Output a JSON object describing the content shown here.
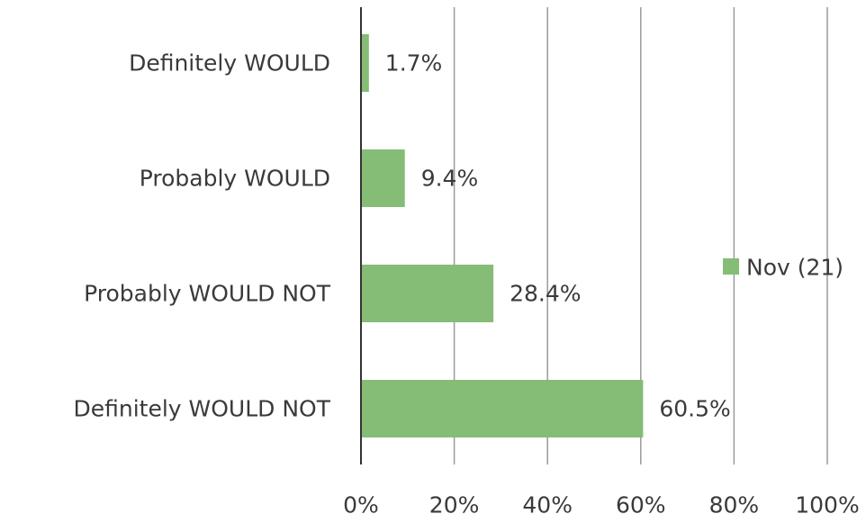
{
  "chart_data": {
    "type": "bar",
    "orientation": "horizontal",
    "categories": [
      "Definitely WOULD",
      "Probably WOULD",
      "Probably WOULD NOT",
      "Definitely WOULD NOT"
    ],
    "series": [
      {
        "name": "Nov (21)",
        "values": [
          1.7,
          9.4,
          28.4,
          60.5
        ],
        "color": "#85bc76"
      }
    ],
    "data_labels": [
      "1.7%",
      "9.4%",
      "28.4%",
      "60.5%"
    ],
    "xlim": [
      0,
      100
    ],
    "x_ticks": [
      0,
      20,
      40,
      60,
      80,
      100
    ],
    "x_tick_labels": [
      "0%",
      "20%",
      "40%",
      "60%",
      "80%",
      "100%"
    ],
    "grid": true,
    "legend_position": "right"
  }
}
